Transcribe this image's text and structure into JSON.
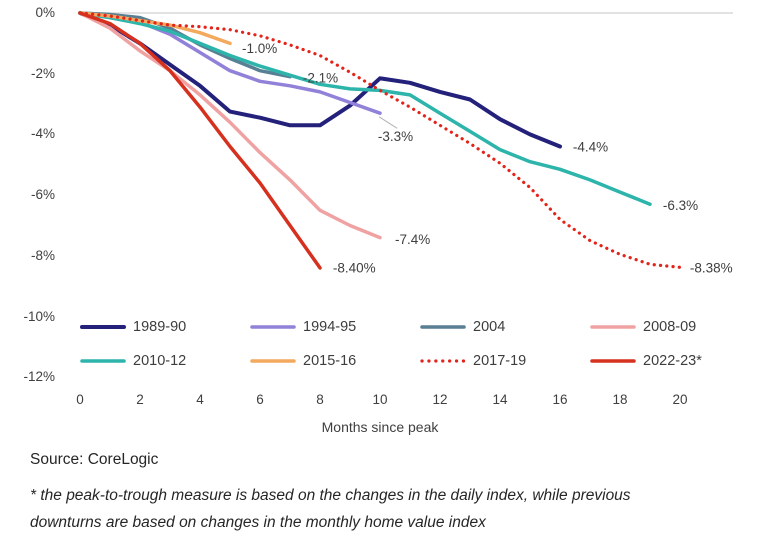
{
  "chart": {
    "x_axis_title": "Months since peak",
    "y_ticks": [
      {
        "label": "0%",
        "value": 0
      },
      {
        "label": "-2%",
        "value": -2
      },
      {
        "label": "-4%",
        "value": -4
      },
      {
        "label": "-6%",
        "value": -6
      },
      {
        "label": "-8%",
        "value": -8
      },
      {
        "label": "-10%",
        "value": -10
      },
      {
        "label": "-12%",
        "value": -12
      }
    ],
    "x_ticks": [
      0,
      2,
      4,
      6,
      8,
      10,
      12,
      14,
      16,
      18,
      20
    ],
    "gridline_color": "#d9d9d9",
    "text_color": "#3f3f3f"
  },
  "chart_data": {
    "type": "line",
    "title": "",
    "xlabel": "Months since peak",
    "ylabel": "",
    "x_range": [
      0,
      20
    ],
    "y_range": [
      0,
      -12
    ],
    "grid": "horizontal zero line only",
    "legend_position": "bottom",
    "series": [
      {
        "name": "1989-90",
        "color": "#23217a",
        "line_style": "solid",
        "width": 4,
        "values": [
          0,
          -0.4,
          -1.0,
          -1.7,
          -2.4,
          -3.25,
          -3.45,
          -3.7,
          -3.7,
          -3.05,
          -2.15,
          -2.3,
          -2.6,
          -2.85,
          -3.5,
          -4.0,
          -4.4
        ],
        "end_label": "-4.4%"
      },
      {
        "name": "1994-95",
        "color": "#9181d9",
        "line_style": "solid",
        "width": 3.5,
        "values": [
          0,
          -0.15,
          -0.3,
          -0.7,
          -1.3,
          -1.9,
          -2.25,
          -2.4,
          -2.6,
          -2.95,
          -3.3
        ],
        "end_label": "-3.3%"
      },
      {
        "name": "2004",
        "color": "#587f93",
        "line_style": "solid",
        "width": 3.5,
        "values": [
          0,
          -0.05,
          -0.15,
          -0.5,
          -1.05,
          -1.5,
          -1.9,
          -2.1
        ],
        "end_label": "-2.1%"
      },
      {
        "name": "2008-09",
        "color": "#f0a2a2",
        "line_style": "solid",
        "width": 3.5,
        "values": [
          0,
          -0.5,
          -1.25,
          -1.9,
          -2.7,
          -3.6,
          -4.6,
          -5.5,
          -6.5,
          -7.0,
          -7.4
        ],
        "end_label": "-7.4%"
      },
      {
        "name": "2010-12",
        "color": "#2db4ab",
        "line_style": "solid",
        "width": 3.5,
        "values": [
          0,
          -0.15,
          -0.35,
          -0.6,
          -1.0,
          -1.4,
          -1.75,
          -2.05,
          -2.35,
          -2.5,
          -2.55,
          -2.7,
          -3.3,
          -3.9,
          -4.5,
          -4.9,
          -5.15,
          -5.5,
          -5.9,
          -6.3
        ],
        "end_label": "-6.3%"
      },
      {
        "name": "2015-16",
        "color": "#f3a95e",
        "line_style": "solid",
        "width": 3.5,
        "values": [
          0,
          -0.1,
          -0.25,
          -0.4,
          -0.65,
          -1.0
        ],
        "end_label": "-1.0%"
      },
      {
        "name": "2017-19",
        "color": "#e3241a",
        "line_style": "dotted",
        "width": 3.2,
        "values": [
          0,
          -0.1,
          -0.25,
          -0.4,
          -0.45,
          -0.55,
          -0.75,
          -1.05,
          -1.4,
          -1.95,
          -2.55,
          -3.1,
          -3.7,
          -4.3,
          -4.95,
          -5.75,
          -6.8,
          -7.5,
          -7.95,
          -8.28,
          -8.38
        ],
        "end_label": "-8.38%"
      },
      {
        "name": "2022-23*",
        "color": "#d6301f",
        "line_style": "solid",
        "width": 3.5,
        "values": [
          0,
          -0.35,
          -1.0,
          -1.9,
          -3.1,
          -4.4,
          -5.6,
          -7.0,
          -8.4
        ],
        "end_label": "-8.40%"
      }
    ],
    "annotations": [
      {
        "text": "-1.0%",
        "month": 5.4,
        "value": -1.2
      },
      {
        "text": "-2.1%",
        "month": 7.43,
        "value": -2.17
      },
      {
        "text": "-3.3%",
        "month": 9.93,
        "value": -4.1
      },
      {
        "text": "-4.4%",
        "month": 16.43,
        "value": -4.45
      },
      {
        "text": "-6.3%",
        "month": 19.43,
        "value": -6.37
      },
      {
        "text": "-7.4%",
        "month": 10.5,
        "value": -7.5
      },
      {
        "text": "-8.40%",
        "month": 8.43,
        "value": -8.43
      },
      {
        "text": "-8.38%",
        "month": 20.33,
        "value": -8.43
      }
    ],
    "leader_line": {
      "from": [
        9.97,
        -3.42
      ],
      "to": [
        10.57,
        -3.8
      ]
    }
  },
  "footer": {
    "source": "Source: CoreLogic",
    "note_line1": "* the peak-to-trough measure is based on the changes in the daily index, while previous",
    "note_line2": "downturns are based on changes in the monthly home value index"
  }
}
